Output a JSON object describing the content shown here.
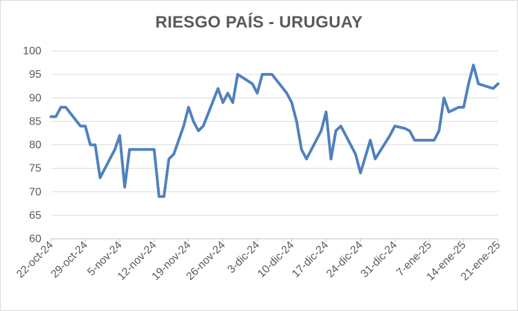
{
  "chart_data": {
    "type": "line",
    "title": "RIESGO PAÍS - URUGUAY",
    "xlabel": "",
    "ylabel": "",
    "ylim": [
      60,
      100
    ],
    "yticks": [
      60,
      65,
      70,
      75,
      80,
      85,
      90,
      95,
      100
    ],
    "grid": "horizontal",
    "legend": "none",
    "x_tick_labels": [
      "22-oct-24",
      "29-oct-24",
      "5-nov-24",
      "12-nov-24",
      "19-nov-24",
      "26-nov-24",
      "3-dic-24",
      "10-dic-24",
      "17-dic-24",
      "24-dic-24",
      "31-dic-24",
      "7-ene-25",
      "14-ene-25",
      "21-ene-25"
    ],
    "series": [
      {
        "color": "#4f81bd",
        "points": [
          {
            "x": "2024-10-22",
            "y": 86
          },
          {
            "x": "2024-10-23",
            "y": 86
          },
          {
            "x": "2024-10-24",
            "y": 88
          },
          {
            "x": "2024-10-25",
            "y": 88
          },
          {
            "x": "2024-10-28",
            "y": 84
          },
          {
            "x": "2024-10-29",
            "y": 84
          },
          {
            "x": "2024-10-30",
            "y": 80
          },
          {
            "x": "2024-10-31",
            "y": 80
          },
          {
            "x": "2024-11-01",
            "y": 73
          },
          {
            "x": "2024-11-04",
            "y": 79
          },
          {
            "x": "2024-11-05",
            "y": 82
          },
          {
            "x": "2024-11-06",
            "y": 71
          },
          {
            "x": "2024-11-07",
            "y": 79
          },
          {
            "x": "2024-11-08",
            "y": 79
          },
          {
            "x": "2024-11-11",
            "y": 79
          },
          {
            "x": "2024-11-12",
            "y": 79
          },
          {
            "x": "2024-11-13",
            "y": 69
          },
          {
            "x": "2024-11-14",
            "y": 69
          },
          {
            "x": "2024-11-15",
            "y": 77
          },
          {
            "x": "2024-11-16",
            "y": 78
          },
          {
            "x": "2024-11-18",
            "y": 84
          },
          {
            "x": "2024-11-19",
            "y": 88
          },
          {
            "x": "2024-11-20",
            "y": 85
          },
          {
            "x": "2024-11-21",
            "y": 83
          },
          {
            "x": "2024-11-22",
            "y": 84
          },
          {
            "x": "2024-11-25",
            "y": 92
          },
          {
            "x": "2024-11-26",
            "y": 89
          },
          {
            "x": "2024-11-27",
            "y": 91
          },
          {
            "x": "2024-11-28",
            "y": 89
          },
          {
            "x": "2024-11-29",
            "y": 95
          },
          {
            "x": "2024-12-02",
            "y": 93
          },
          {
            "x": "2024-12-03",
            "y": 91
          },
          {
            "x": "2024-12-04",
            "y": 95
          },
          {
            "x": "2024-12-05",
            "y": 95
          },
          {
            "x": "2024-12-06",
            "y": 95
          },
          {
            "x": "2024-12-09",
            "y": 91
          },
          {
            "x": "2024-12-10",
            "y": 89
          },
          {
            "x": "2024-12-11",
            "y": 85
          },
          {
            "x": "2024-12-12",
            "y": 79
          },
          {
            "x": "2024-12-13",
            "y": 77
          },
          {
            "x": "2024-12-16",
            "y": 83
          },
          {
            "x": "2024-12-17",
            "y": 87
          },
          {
            "x": "2024-12-18",
            "y": 77
          },
          {
            "x": "2024-12-19",
            "y": 83
          },
          {
            "x": "2024-12-20",
            "y": 84
          },
          {
            "x": "2024-12-23",
            "y": 78
          },
          {
            "x": "2024-12-24",
            "y": 74
          },
          {
            "x": "2024-12-26",
            "y": 81
          },
          {
            "x": "2024-12-27",
            "y": 77
          },
          {
            "x": "2024-12-30",
            "y": 82
          },
          {
            "x": "2024-12-31",
            "y": 84
          },
          {
            "x": "2025-01-02",
            "y": 83.5
          },
          {
            "x": "2025-01-03",
            "y": 83
          },
          {
            "x": "2025-01-04",
            "y": 81
          },
          {
            "x": "2025-01-06",
            "y": 81
          },
          {
            "x": "2025-01-07",
            "y": 81
          },
          {
            "x": "2025-01-08",
            "y": 81
          },
          {
            "x": "2025-01-09",
            "y": 83
          },
          {
            "x": "2025-01-10",
            "y": 90
          },
          {
            "x": "2025-01-11",
            "y": 87
          },
          {
            "x": "2025-01-13",
            "y": 88
          },
          {
            "x": "2025-01-14",
            "y": 88
          },
          {
            "x": "2025-01-15",
            "y": 93
          },
          {
            "x": "2025-01-16",
            "y": 97
          },
          {
            "x": "2025-01-17",
            "y": 93
          },
          {
            "x": "2025-01-20",
            "y": 92
          },
          {
            "x": "2025-01-21",
            "y": 93
          }
        ]
      }
    ]
  }
}
